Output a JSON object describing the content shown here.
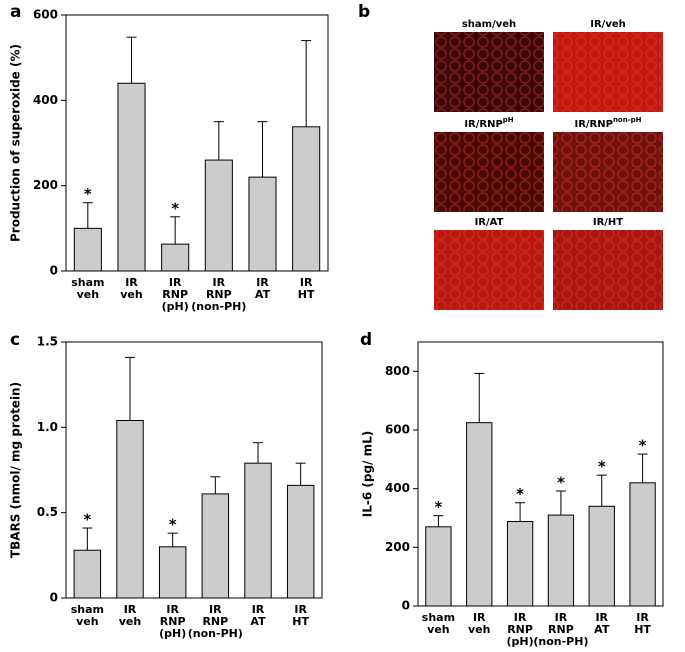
{
  "chart_data": [
    {
      "type": "bar",
      "panel": "a",
      "ylabel": "Production of superoxide (%)",
      "categories": [
        [
          "sham",
          "veh"
        ],
        [
          "IR",
          "veh"
        ],
        [
          "IR",
          "RNP",
          "(pH)"
        ],
        [
          "IR",
          "RNP",
          "(non-PH)"
        ],
        [
          "IR",
          "AT"
        ],
        [
          "IR",
          "HT"
        ]
      ],
      "values": [
        100,
        440,
        63,
        260,
        220,
        338
      ],
      "errors": [
        60,
        108,
        64,
        90,
        130,
        202
      ],
      "markers": [
        "*",
        null,
        "*",
        null,
        null,
        null
      ],
      "color": "#cccccc",
      "ylim": [
        0,
        600
      ],
      "yticks": [
        0,
        200,
        400,
        600
      ]
    },
    {
      "type": "image-grid",
      "panel": "b",
      "images": [
        {
          "label": "sham/veh",
          "color": "#3a0808"
        },
        {
          "label": "IR/veh",
          "color": "#c01a12"
        },
        {
          "label": "IR/RNP",
          "sup": "pH",
          "color": "#4a0a08"
        },
        {
          "label": "IR/RNP",
          "sup": "non-pH",
          "color": "#6e120c"
        },
        {
          "label": "IR/AT",
          "color": "#b81a12"
        },
        {
          "label": "IR/HT",
          "color": "#a8160f"
        }
      ]
    },
    {
      "type": "bar",
      "panel": "c",
      "ylabel": "TBARS (nmol/ mg protein)",
      "categories": [
        [
          "sham",
          "veh"
        ],
        [
          "IR",
          "veh"
        ],
        [
          "IR",
          "RNP",
          "(pH)"
        ],
        [
          "IR",
          "RNP",
          "(non-PH)"
        ],
        [
          "IR",
          "AT"
        ],
        [
          "IR",
          "HT"
        ]
      ],
      "values": [
        0.28,
        1.04,
        0.3,
        0.61,
        0.79,
        0.66
      ],
      "errors": [
        0.13,
        0.37,
        0.08,
        0.1,
        0.12,
        0.13
      ],
      "markers": [
        "*",
        null,
        "*",
        null,
        null,
        null
      ],
      "color": "#cccccc",
      "ylim": [
        0,
        1.5
      ],
      "yticks": [
        0,
        0.5,
        {
          "value": 1,
          "label": "1.0"
        },
        1.5
      ]
    },
    {
      "type": "bar",
      "panel": "d",
      "ylabel": "IL-6 (pg/ mL)",
      "categories": [
        [
          "sham",
          "veh"
        ],
        [
          "IR",
          "veh"
        ],
        [
          "IR",
          "RNP",
          "(pH)"
        ],
        [
          "IR",
          "RNP",
          "(non-PH)"
        ],
        [
          "IR",
          "AT"
        ],
        [
          "IR",
          "HT"
        ]
      ],
      "values": [
        270,
        625,
        288,
        310,
        340,
        420
      ],
      "errors": [
        38,
        168,
        64,
        82,
        106,
        98
      ],
      "markers": [
        "*",
        null,
        "*",
        "*",
        "*",
        "*"
      ],
      "color": "#cccccc",
      "ylim": [
        0,
        900
      ],
      "yticks": [
        0,
        200,
        400,
        600,
        800
      ]
    }
  ]
}
